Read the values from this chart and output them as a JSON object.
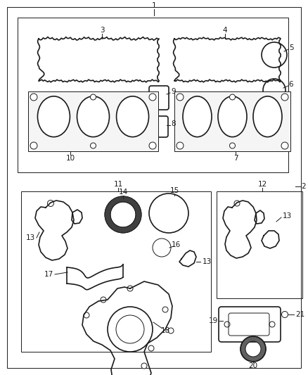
{
  "bg_color": "#ffffff",
  "line_color": "#1a1a1a",
  "fig_w": 4.38,
  "fig_h": 5.33,
  "dpi": 100
}
